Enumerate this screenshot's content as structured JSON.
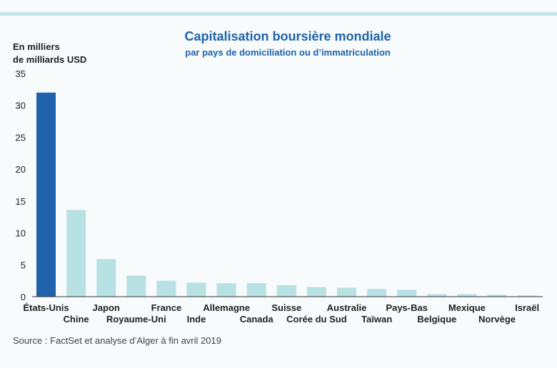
{
  "chart_data": {
    "type": "bar",
    "title": "Capitalisation boursière mondiale",
    "subtitle": "par pays de domiciliation ou d’immatriculation",
    "ylabel_line1": "En milliers",
    "ylabel_line2": "de milliards USD",
    "ylim": [
      0,
      35
    ],
    "yticks": [
      0,
      5,
      10,
      15,
      20,
      25,
      30,
      35
    ],
    "grid": false,
    "categories": [
      "États-Unis",
      "Chine",
      "Japon",
      "Royaume-Uni",
      "France",
      "Inde",
      "Allemagne",
      "Canada",
      "Suisse",
      "Corée du Sud",
      "Australie",
      "Taïwan",
      "Pays-Bas",
      "Belgique",
      "Mexique",
      "Norvège",
      "Israël"
    ],
    "values": [
      32.0,
      13.6,
      5.9,
      3.3,
      2.5,
      2.2,
      2.1,
      2.1,
      1.8,
      1.5,
      1.4,
      1.2,
      1.1,
      0.4,
      0.4,
      0.3,
      0.2
    ],
    "colors": {
      "highlight": "#1f63ad",
      "bar": "#b7e1e3"
    },
    "source": "Source : FactSet et analyse d’Alger à fin avril 2019"
  }
}
